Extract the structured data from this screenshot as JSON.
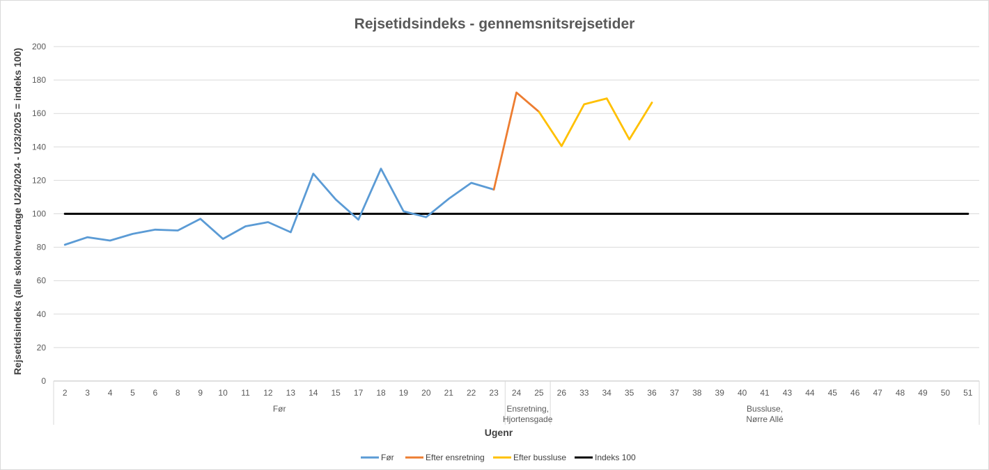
{
  "chart_data": {
    "type": "line",
    "title": "Rejsetidsindeks - gennemsnitsrejsetider",
    "xlabel": "Ugenr",
    "ylabel": "Rejsetidsindeks (alle skolehverdage U24/2024 - U23/2025 = indeks 100)",
    "ylim": [
      0,
      200
    ],
    "yticks": [
      "0",
      "20",
      "40",
      "60",
      "80",
      "100",
      "120",
      "140",
      "160",
      "180",
      "200"
    ],
    "categories": [
      "2",
      "3",
      "4",
      "5",
      "6",
      "8",
      "9",
      "10",
      "11",
      "12",
      "13",
      "14",
      "15",
      "17",
      "18",
      "19",
      "20",
      "21",
      "22",
      "23",
      "24",
      "25",
      "26",
      "33",
      "34",
      "35",
      "36",
      "37",
      "38",
      "39",
      "40",
      "41",
      "43",
      "44",
      "45",
      "46",
      "47",
      "48",
      "49",
      "50",
      "51"
    ],
    "groups": [
      {
        "label_lines": [
          "Før"
        ],
        "start": 0,
        "end": 19
      },
      {
        "label_lines": [
          "Ensretning,",
          "Hjortensgade"
        ],
        "start": 20,
        "end": 21
      },
      {
        "label_lines": [
          "Bussluse,",
          "Nørre Allé"
        ],
        "start": 22,
        "end": 40
      }
    ],
    "grid": true,
    "legend_position": "bottom",
    "series": [
      {
        "name": "Før",
        "color": "#5b9bd5",
        "values": [
          81.5,
          86,
          84,
          88,
          90.5,
          90,
          97,
          85,
          92.5,
          95,
          89,
          124,
          108.5,
          96.5,
          127,
          101.5,
          98,
          109,
          118.5,
          114.5,
          null,
          null,
          null,
          null,
          null,
          null,
          null,
          null,
          null,
          null,
          null,
          null,
          null,
          null,
          null,
          null,
          null,
          null,
          null,
          null,
          null
        ]
      },
      {
        "name": "Efter ensretning",
        "color": "#ed7d31",
        "values": [
          null,
          null,
          null,
          null,
          null,
          null,
          null,
          null,
          null,
          null,
          null,
          null,
          null,
          null,
          null,
          null,
          null,
          null,
          null,
          114.5,
          172.5,
          161,
          null,
          null,
          null,
          null,
          null,
          null,
          null,
          null,
          null,
          null,
          null,
          null,
          null,
          null,
          null,
          null,
          null,
          null,
          null
        ]
      },
      {
        "name": "Efter bussluse",
        "color": "#ffc000",
        "values": [
          null,
          null,
          null,
          null,
          null,
          null,
          null,
          null,
          null,
          null,
          null,
          null,
          null,
          null,
          null,
          null,
          null,
          null,
          null,
          null,
          null,
          161,
          140.5,
          165.5,
          169,
          144.5,
          166.5,
          null,
          null,
          null,
          null,
          null,
          null,
          null,
          null,
          null,
          null,
          null,
          null,
          null,
          null
        ]
      },
      {
        "name": "Indeks 100",
        "color": "#000000",
        "values": [
          100,
          100,
          100,
          100,
          100,
          100,
          100,
          100,
          100,
          100,
          100,
          100,
          100,
          100,
          100,
          100,
          100,
          100,
          100,
          100,
          100,
          100,
          100,
          100,
          100,
          100,
          100,
          100,
          100,
          100,
          100,
          100,
          100,
          100,
          100,
          100,
          100,
          100,
          100,
          100,
          100
        ]
      }
    ]
  }
}
